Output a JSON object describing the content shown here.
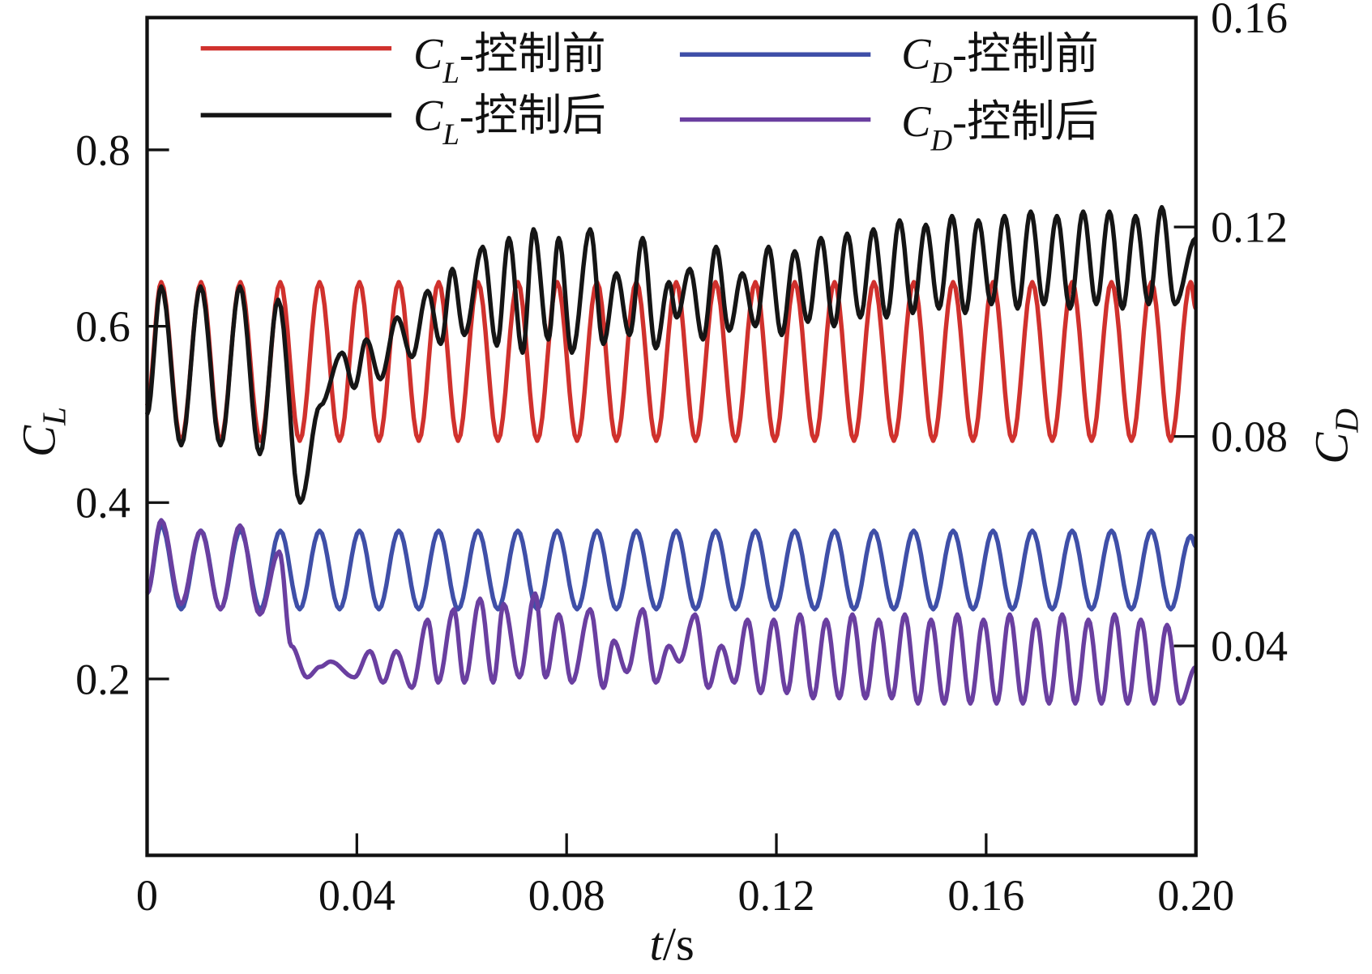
{
  "chart_data": {
    "type": "line",
    "title": "",
    "xlabel": {
      "italic": "t",
      "rest": "/s"
    },
    "ylabel_left": {
      "main": "C",
      "sub": "L"
    },
    "ylabel_right": {
      "main": "C",
      "sub": "D"
    },
    "xlim": [
      0,
      0.2
    ],
    "ylim_left": [
      0,
      0.95
    ],
    "ylim_right": [
      0,
      0.16
    ],
    "grid": false,
    "legend_placement": "top",
    "x_ticks": [
      0,
      0.04,
      0.08,
      0.12,
      0.16,
      0.2
    ],
    "x_tick_labels": [
      "0",
      "0.04",
      "0.08",
      "0.12",
      "0.16",
      "0.20"
    ],
    "y_left_ticks": [
      0.2,
      0.4,
      0.6,
      0.8
    ],
    "y_left_tick_labels": [
      "0.2",
      "0.4",
      "0.6",
      "0.8"
    ],
    "y_right_ticks": [
      0.04,
      0.08,
      0.12,
      0.16
    ],
    "y_right_tick_labels": [
      "0.04",
      "0.08",
      "0.12",
      "0.16"
    ],
    "series": [
      {
        "name": "C_L-控制前",
        "legend_main": "C",
        "legend_sub": "L",
        "legend_rest": "-控制前",
        "axis": "left",
        "color": "#d0312d",
        "points": [
          [
            0,
            0.51
          ],
          [
            0.0027,
            0.65
          ],
          [
            0.0065,
            0.47
          ],
          [
            0.0103,
            0.65
          ],
          [
            0.014,
            0.47
          ],
          [
            0.0178,
            0.65
          ],
          [
            0.0216,
            0.47
          ],
          [
            0.0254,
            0.65
          ],
          [
            0.0291,
            0.47
          ],
          [
            0.0329,
            0.65
          ],
          [
            0.0367,
            0.47
          ],
          [
            0.0405,
            0.65
          ],
          [
            0.0442,
            0.47
          ],
          [
            0.048,
            0.65
          ],
          [
            0.0518,
            0.47
          ],
          [
            0.0556,
            0.65
          ],
          [
            0.0593,
            0.47
          ],
          [
            0.0631,
            0.65
          ],
          [
            0.0669,
            0.47
          ],
          [
            0.0707,
            0.65
          ],
          [
            0.0744,
            0.47
          ],
          [
            0.0782,
            0.65
          ],
          [
            0.082,
            0.47
          ],
          [
            0.0858,
            0.65
          ],
          [
            0.0895,
            0.47
          ],
          [
            0.0933,
            0.65
          ],
          [
            0.0971,
            0.47
          ],
          [
            0.1009,
            0.65
          ],
          [
            0.1046,
            0.47
          ],
          [
            0.1084,
            0.65
          ],
          [
            0.1122,
            0.47
          ],
          [
            0.116,
            0.65
          ],
          [
            0.1197,
            0.47
          ],
          [
            0.1235,
            0.65
          ],
          [
            0.1273,
            0.47
          ],
          [
            0.1311,
            0.65
          ],
          [
            0.1348,
            0.47
          ],
          [
            0.1386,
            0.65
          ],
          [
            0.1424,
            0.47
          ],
          [
            0.1462,
            0.65
          ],
          [
            0.1499,
            0.47
          ],
          [
            0.1537,
            0.65
          ],
          [
            0.1575,
            0.47
          ],
          [
            0.1613,
            0.65
          ],
          [
            0.165,
            0.47
          ],
          [
            0.1688,
            0.65
          ],
          [
            0.1726,
            0.47
          ],
          [
            0.1764,
            0.65
          ],
          [
            0.1801,
            0.47
          ],
          [
            0.1839,
            0.65
          ],
          [
            0.1877,
            0.47
          ],
          [
            0.1915,
            0.65
          ],
          [
            0.1952,
            0.47
          ],
          [
            0.199,
            0.65
          ],
          [
            0.2,
            0.62
          ]
        ]
      },
      {
        "name": "C_L-控制后",
        "legend_main": "C",
        "legend_sub": "L",
        "legend_rest": "-控制后",
        "axis": "left",
        "color": "#151515",
        "points": [
          [
            0,
            0.5
          ],
          [
            0.0027,
            0.645
          ],
          [
            0.0065,
            0.465
          ],
          [
            0.0102,
            0.645
          ],
          [
            0.014,
            0.465
          ],
          [
            0.0177,
            0.645
          ],
          [
            0.0215,
            0.455
          ],
          [
            0.025,
            0.63
          ],
          [
            0.0292,
            0.4
          ],
          [
            0.033,
            0.51
          ],
          [
            0.0372,
            0.57
          ],
          [
            0.0395,
            0.53
          ],
          [
            0.0418,
            0.585
          ],
          [
            0.0445,
            0.54
          ],
          [
            0.0477,
            0.61
          ],
          [
            0.0505,
            0.565
          ],
          [
            0.0535,
            0.64
          ],
          [
            0.056,
            0.58
          ],
          [
            0.0582,
            0.665
          ],
          [
            0.0605,
            0.59
          ],
          [
            0.064,
            0.69
          ],
          [
            0.0667,
            0.578
          ],
          [
            0.069,
            0.7
          ],
          [
            0.0716,
            0.57
          ],
          [
            0.0737,
            0.71
          ],
          [
            0.0765,
            0.585
          ],
          [
            0.0785,
            0.7
          ],
          [
            0.081,
            0.57
          ],
          [
            0.0845,
            0.71
          ],
          [
            0.087,
            0.58
          ],
          [
            0.0895,
            0.66
          ],
          [
            0.092,
            0.59
          ],
          [
            0.0945,
            0.7
          ],
          [
            0.097,
            0.575
          ],
          [
            0.0995,
            0.65
          ],
          [
            0.101,
            0.61
          ],
          [
            0.1035,
            0.665
          ],
          [
            0.106,
            0.585
          ],
          [
            0.1085,
            0.69
          ],
          [
            0.111,
            0.595
          ],
          [
            0.1135,
            0.66
          ],
          [
            0.116,
            0.6
          ],
          [
            0.1185,
            0.69
          ],
          [
            0.121,
            0.59
          ],
          [
            0.1235,
            0.685
          ],
          [
            0.126,
            0.605
          ],
          [
            0.1285,
            0.7
          ],
          [
            0.131,
            0.6
          ],
          [
            0.1335,
            0.705
          ],
          [
            0.136,
            0.61
          ],
          [
            0.1385,
            0.71
          ],
          [
            0.141,
            0.61
          ],
          [
            0.1435,
            0.72
          ],
          [
            0.146,
            0.615
          ],
          [
            0.1485,
            0.715
          ],
          [
            0.151,
            0.62
          ],
          [
            0.1535,
            0.725
          ],
          [
            0.156,
            0.615
          ],
          [
            0.1585,
            0.72
          ],
          [
            0.161,
            0.625
          ],
          [
            0.1635,
            0.725
          ],
          [
            0.166,
            0.62
          ],
          [
            0.1685,
            0.73
          ],
          [
            0.171,
            0.625
          ],
          [
            0.1735,
            0.725
          ],
          [
            0.176,
            0.62
          ],
          [
            0.1785,
            0.73
          ],
          [
            0.181,
            0.625
          ],
          [
            0.1835,
            0.73
          ],
          [
            0.186,
            0.62
          ],
          [
            0.1885,
            0.725
          ],
          [
            0.191,
            0.625
          ],
          [
            0.1935,
            0.735
          ],
          [
            0.196,
            0.625
          ],
          [
            0.2,
            0.7
          ]
        ]
      },
      {
        "name": "C_D-控制前",
        "legend_main": "C",
        "legend_sub": "D",
        "legend_rest": "-控制前",
        "axis": "right",
        "color": "#3f4fa8",
        "points": [
          [
            0,
            0.05
          ],
          [
            0.0027,
            0.063
          ],
          [
            0.0065,
            0.047
          ],
          [
            0.0103,
            0.062
          ],
          [
            0.014,
            0.047
          ],
          [
            0.0178,
            0.062
          ],
          [
            0.0216,
            0.047
          ],
          [
            0.0254,
            0.062
          ],
          [
            0.0291,
            0.047
          ],
          [
            0.0329,
            0.062
          ],
          [
            0.0367,
            0.047
          ],
          [
            0.0405,
            0.062
          ],
          [
            0.0442,
            0.047
          ],
          [
            0.048,
            0.062
          ],
          [
            0.0518,
            0.047
          ],
          [
            0.0556,
            0.062
          ],
          [
            0.0593,
            0.047
          ],
          [
            0.0631,
            0.062
          ],
          [
            0.0669,
            0.047
          ],
          [
            0.0707,
            0.062
          ],
          [
            0.0744,
            0.047
          ],
          [
            0.0782,
            0.062
          ],
          [
            0.082,
            0.047
          ],
          [
            0.0858,
            0.062
          ],
          [
            0.0895,
            0.047
          ],
          [
            0.0933,
            0.062
          ],
          [
            0.0971,
            0.047
          ],
          [
            0.1009,
            0.062
          ],
          [
            0.1046,
            0.047
          ],
          [
            0.1084,
            0.062
          ],
          [
            0.1122,
            0.047
          ],
          [
            0.116,
            0.062
          ],
          [
            0.1197,
            0.047
          ],
          [
            0.1235,
            0.062
          ],
          [
            0.1273,
            0.047
          ],
          [
            0.1311,
            0.062
          ],
          [
            0.1348,
            0.047
          ],
          [
            0.1386,
            0.062
          ],
          [
            0.1424,
            0.047
          ],
          [
            0.1462,
            0.062
          ],
          [
            0.1499,
            0.047
          ],
          [
            0.1537,
            0.062
          ],
          [
            0.1575,
            0.047
          ],
          [
            0.1613,
            0.062
          ],
          [
            0.165,
            0.047
          ],
          [
            0.1688,
            0.062
          ],
          [
            0.1726,
            0.047
          ],
          [
            0.1764,
            0.062
          ],
          [
            0.1801,
            0.047
          ],
          [
            0.1839,
            0.062
          ],
          [
            0.1877,
            0.047
          ],
          [
            0.1915,
            0.062
          ],
          [
            0.1952,
            0.047
          ],
          [
            0.199,
            0.061
          ],
          [
            0.2,
            0.059
          ]
        ]
      },
      {
        "name": "C_D-控制后",
        "legend_main": "C",
        "legend_sub": "D",
        "legend_rest": "-控制后",
        "axis": "right",
        "color": "#6a3fa0",
        "points": [
          [
            0,
            0.05
          ],
          [
            0.0027,
            0.064
          ],
          [
            0.0065,
            0.048
          ],
          [
            0.0102,
            0.062
          ],
          [
            0.014,
            0.047
          ],
          [
            0.0177,
            0.063
          ],
          [
            0.0215,
            0.046
          ],
          [
            0.0252,
            0.058
          ],
          [
            0.0275,
            0.04
          ],
          [
            0.0305,
            0.034
          ],
          [
            0.033,
            0.036
          ],
          [
            0.035,
            0.037
          ],
          [
            0.0395,
            0.034
          ],
          [
            0.0425,
            0.039
          ],
          [
            0.045,
            0.033
          ],
          [
            0.0475,
            0.039
          ],
          [
            0.0505,
            0.032
          ],
          [
            0.0535,
            0.045
          ],
          [
            0.0555,
            0.033
          ],
          [
            0.0585,
            0.047
          ],
          [
            0.0605,
            0.033
          ],
          [
            0.0635,
            0.049
          ],
          [
            0.066,
            0.033
          ],
          [
            0.068,
            0.048
          ],
          [
            0.071,
            0.034
          ],
          [
            0.074,
            0.05
          ],
          [
            0.076,
            0.034
          ],
          [
            0.0785,
            0.046
          ],
          [
            0.081,
            0.033
          ],
          [
            0.0845,
            0.047
          ],
          [
            0.087,
            0.032
          ],
          [
            0.089,
            0.041
          ],
          [
            0.0915,
            0.035
          ],
          [
            0.0945,
            0.047
          ],
          [
            0.097,
            0.033
          ],
          [
            0.0995,
            0.04
          ],
          [
            0.1015,
            0.037
          ],
          [
            0.1045,
            0.046
          ],
          [
            0.107,
            0.032
          ],
          [
            0.1095,
            0.04
          ],
          [
            0.112,
            0.033
          ],
          [
            0.1145,
            0.045
          ],
          [
            0.117,
            0.031
          ],
          [
            0.1195,
            0.045
          ],
          [
            0.122,
            0.031
          ],
          [
            0.1245,
            0.046
          ],
          [
            0.127,
            0.03
          ],
          [
            0.1295,
            0.045
          ],
          [
            0.132,
            0.03
          ],
          [
            0.1345,
            0.046
          ],
          [
            0.137,
            0.03
          ],
          [
            0.1395,
            0.045
          ],
          [
            0.142,
            0.03
          ],
          [
            0.1445,
            0.046
          ],
          [
            0.147,
            0.029
          ],
          [
            0.1495,
            0.045
          ],
          [
            0.152,
            0.029
          ],
          [
            0.1545,
            0.046
          ],
          [
            0.157,
            0.029
          ],
          [
            0.1595,
            0.045
          ],
          [
            0.162,
            0.029
          ],
          [
            0.1645,
            0.046
          ],
          [
            0.167,
            0.029
          ],
          [
            0.1695,
            0.045
          ],
          [
            0.172,
            0.029
          ],
          [
            0.1745,
            0.046
          ],
          [
            0.177,
            0.029
          ],
          [
            0.1795,
            0.045
          ],
          [
            0.182,
            0.029
          ],
          [
            0.1845,
            0.046
          ],
          [
            0.187,
            0.029
          ],
          [
            0.1895,
            0.045
          ],
          [
            0.192,
            0.029
          ],
          [
            0.1945,
            0.044
          ],
          [
            0.197,
            0.029
          ],
          [
            0.2,
            0.036
          ]
        ]
      }
    ]
  }
}
